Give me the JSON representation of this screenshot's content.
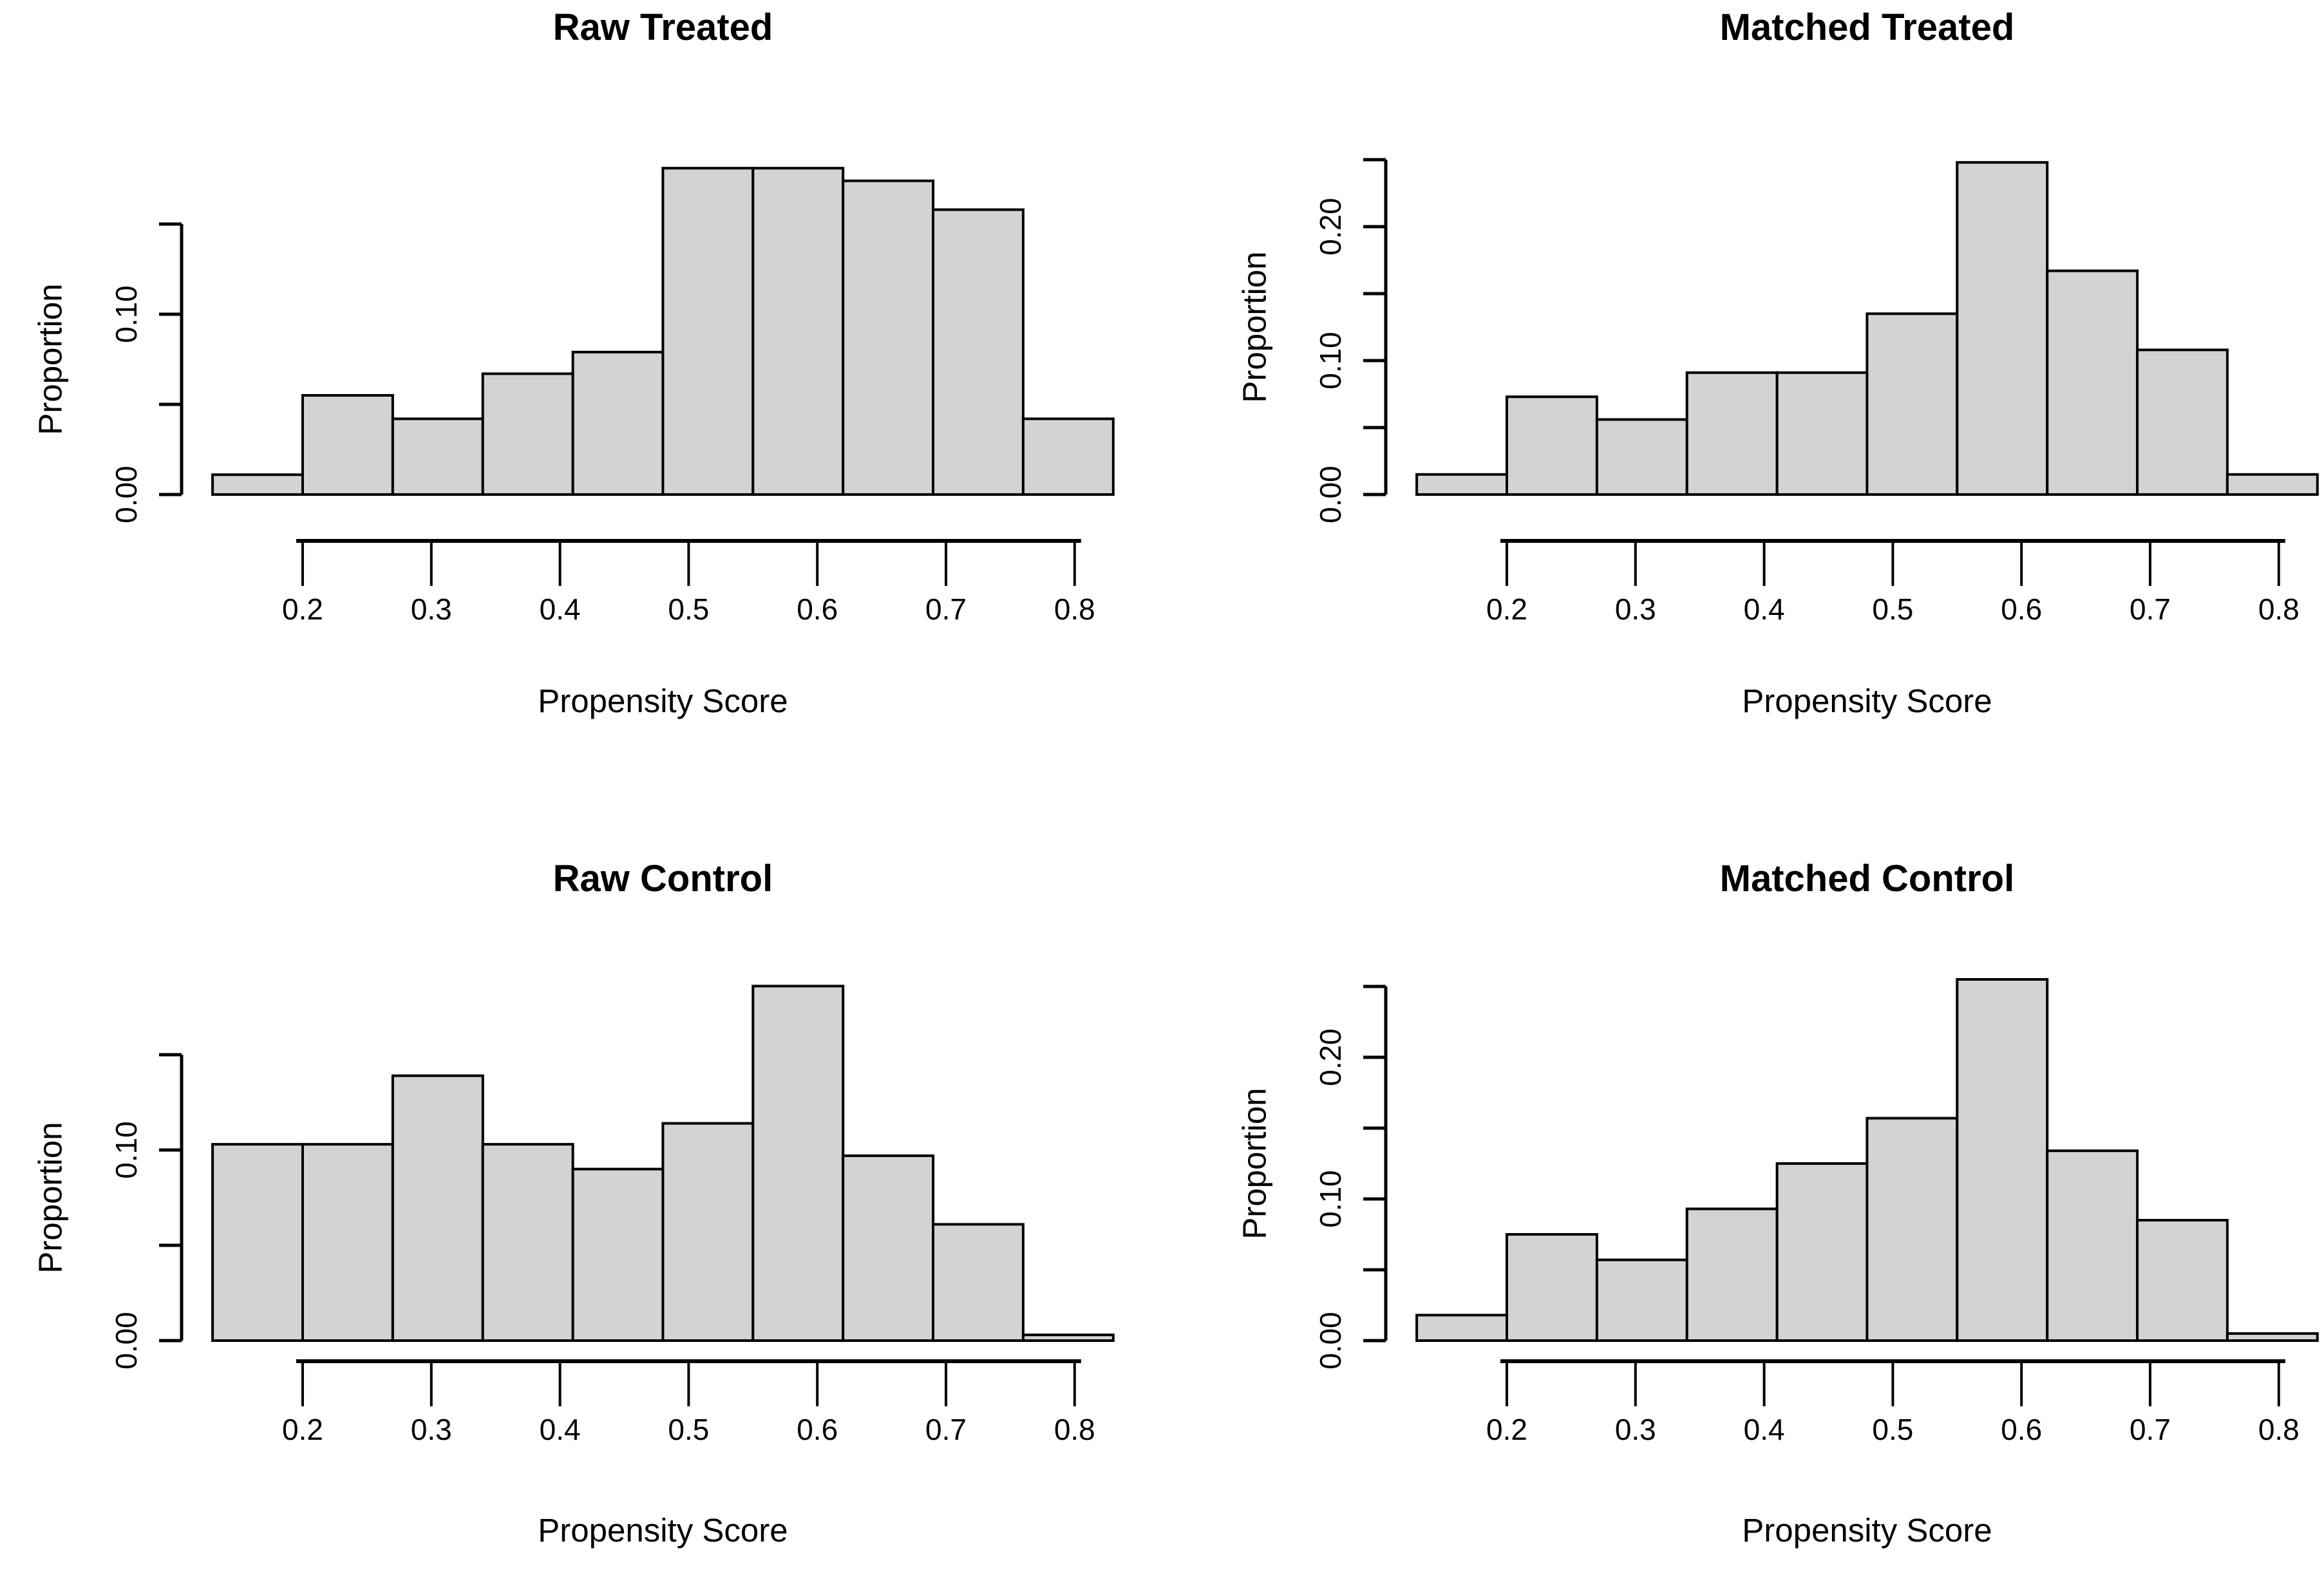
{
  "figure": {
    "background_color": "#ffffff",
    "bar_fill_color": "#d3d3d3",
    "bar_stroke_color": "#000000",
    "text_color": "#000000"
  },
  "chart_data": [
    {
      "type": "bar",
      "subtype": "histogram",
      "title": "Raw Treated",
      "xlabel": "Propensity Score",
      "ylabel": "Proportion",
      "position": {
        "row": 0,
        "col": 0
      },
      "bin_start": 0.13,
      "bin_width": 0.07,
      "values": [
        0.011,
        0.055,
        0.042,
        0.067,
        0.079,
        0.181,
        0.181,
        0.174,
        0.158,
        0.042
      ],
      "x_tick_labels": [
        "0.2",
        "0.3",
        "0.4",
        "0.5",
        "0.6",
        "0.7",
        "0.8"
      ],
      "x_ticks": [
        0.2,
        0.3,
        0.4,
        0.5,
        0.6,
        0.7,
        0.8
      ],
      "y_tick_values": [
        0.0,
        0.05,
        0.1,
        0.15
      ],
      "y_labeled_ticks": [
        0.0,
        0.1
      ],
      "y_tick_labels": [
        "0.00",
        "0.10"
      ],
      "ylim": [
        0,
        0.19
      ],
      "grid": false,
      "legend": null
    },
    {
      "type": "bar",
      "subtype": "histogram",
      "title": "Matched Treated",
      "xlabel": "Propensity Score",
      "ylabel": "Proportion",
      "position": {
        "row": 0,
        "col": 1
      },
      "bin_start": 0.13,
      "bin_width": 0.07,
      "values": [
        0.015,
        0.073,
        0.056,
        0.091,
        0.091,
        0.135,
        0.248,
        0.167,
        0.108,
        0.015
      ],
      "x_tick_labels": [
        "0.2",
        "0.3",
        "0.4",
        "0.5",
        "0.6",
        "0.7",
        "0.8"
      ],
      "x_ticks": [
        0.2,
        0.3,
        0.4,
        0.5,
        0.6,
        0.7,
        0.8
      ],
      "y_tick_values": [
        0.0,
        0.05,
        0.1,
        0.15,
        0.2,
        0.25
      ],
      "y_labeled_ticks": [
        0.0,
        0.1,
        0.2
      ],
      "y_tick_labels": [
        "0.00",
        "0.10",
        "0.20"
      ],
      "ylim": [
        0,
        0.26
      ],
      "grid": false,
      "legend": null
    },
    {
      "type": "bar",
      "subtype": "histogram",
      "title": "Raw Control",
      "xlabel": "Propensity Score",
      "ylabel": "Proportion",
      "position": {
        "row": 1,
        "col": 0
      },
      "bin_start": 0.13,
      "bin_width": 0.07,
      "values": [
        0.103,
        0.103,
        0.139,
        0.103,
        0.09,
        0.114,
        0.186,
        0.097,
        0.061,
        0.003
      ],
      "x_tick_labels": [
        "0.2",
        "0.3",
        "0.4",
        "0.5",
        "0.6",
        "0.7",
        "0.8"
      ],
      "x_ticks": [
        0.2,
        0.3,
        0.4,
        0.5,
        0.6,
        0.7,
        0.8
      ],
      "y_tick_values": [
        0.0,
        0.05,
        0.1,
        0.15
      ],
      "y_labeled_ticks": [
        0.0,
        0.1
      ],
      "y_tick_labels": [
        "0.00",
        "0.10"
      ],
      "ylim": [
        0,
        0.19
      ],
      "grid": false,
      "legend": null
    },
    {
      "type": "bar",
      "subtype": "histogram",
      "title": "Matched Control",
      "xlabel": "Propensity Score",
      "ylabel": "Proportion",
      "position": {
        "row": 1,
        "col": 1
      },
      "bin_start": 0.13,
      "bin_width": 0.07,
      "values": [
        0.018,
        0.075,
        0.057,
        0.093,
        0.125,
        0.157,
        0.255,
        0.134,
        0.085,
        0.005
      ],
      "x_tick_labels": [
        "0.2",
        "0.3",
        "0.4",
        "0.5",
        "0.6",
        "0.7",
        "0.8"
      ],
      "x_ticks": [
        0.2,
        0.3,
        0.4,
        0.5,
        0.6,
        0.7,
        0.8
      ],
      "y_tick_values": [
        0.0,
        0.05,
        0.1,
        0.15,
        0.2,
        0.25
      ],
      "y_labeled_ticks": [
        0.0,
        0.1,
        0.2
      ],
      "y_tick_labels": [
        "0.00",
        "0.10",
        "0.20"
      ],
      "ylim": [
        0,
        0.26
      ],
      "grid": false,
      "legend": null
    }
  ]
}
